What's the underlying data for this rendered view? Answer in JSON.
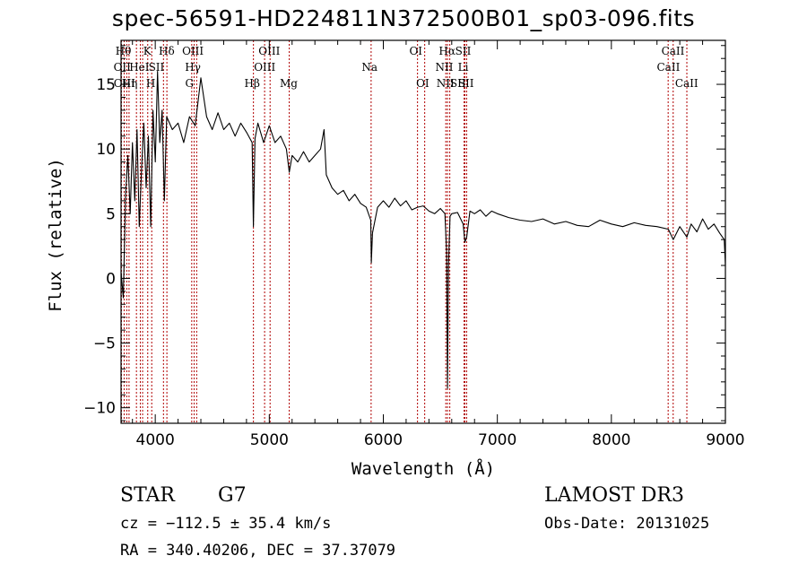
{
  "title": "spec-56591-HD224811N372500B01_sp03-096.fits",
  "info": {
    "class": "STAR",
    "subclass": "G7",
    "survey": "LAMOST DR3",
    "cz": "cz = −112.5 ± 35.4 km/s",
    "obs_date": "Obs-Date: 20131025",
    "radec": "RA = 340.40206, DEC =  37.37079"
  },
  "chart_data": {
    "type": "line",
    "title": "spec-56591-HD224811N372500B01_sp03-096.fits",
    "xlabel": "Wavelength (Å)",
    "ylabel": "Flux (relative)",
    "xlim": [
      3700,
      9000
    ],
    "ylim": [
      -11.2,
      18.4
    ],
    "xticks": [
      4000,
      5000,
      6000,
      7000,
      8000,
      9000
    ],
    "yticks": [
      -10,
      -5,
      0,
      5,
      10,
      15
    ],
    "ytick_labels": [
      "−10",
      "−5",
      "0",
      "5",
      "10",
      "15"
    ],
    "series": [
      {
        "name": "spectrum",
        "points": [
          [
            3700,
            0.5
          ],
          [
            3720,
            -1.5
          ],
          [
            3740,
            6.5
          ],
          [
            3760,
            9.5
          ],
          [
            3780,
            5.0
          ],
          [
            3800,
            10.5
          ],
          [
            3820,
            6.0
          ],
          [
            3840,
            11.5
          ],
          [
            3860,
            4.0
          ],
          [
            3880,
            8.5
          ],
          [
            3900,
            12.0
          ],
          [
            3920,
            7.0
          ],
          [
            3940,
            11.0
          ],
          [
            3960,
            4.0
          ],
          [
            3980,
            13.0
          ],
          [
            4000,
            9.0
          ],
          [
            4020,
            16.0
          ],
          [
            4040,
            10.5
          ],
          [
            4060,
            13.0
          ],
          [
            4080,
            6.0
          ],
          [
            4100,
            12.5
          ],
          [
            4150,
            11.5
          ],
          [
            4200,
            12.0
          ],
          [
            4250,
            10.5
          ],
          [
            4300,
            12.5
          ],
          [
            4350,
            11.8
          ],
          [
            4400,
            15.5
          ],
          [
            4450,
            12.5
          ],
          [
            4500,
            11.5
          ],
          [
            4550,
            12.8
          ],
          [
            4600,
            11.5
          ],
          [
            4650,
            12.0
          ],
          [
            4700,
            11.0
          ],
          [
            4750,
            12.0
          ],
          [
            4800,
            11.3
          ],
          [
            4850,
            10.5
          ],
          [
            4861,
            4.0
          ],
          [
            4875,
            10.8
          ],
          [
            4900,
            12.0
          ],
          [
            4950,
            10.5
          ],
          [
            5000,
            11.8
          ],
          [
            5050,
            10.5
          ],
          [
            5100,
            11.0
          ],
          [
            5150,
            10.0
          ],
          [
            5175,
            8.2
          ],
          [
            5200,
            9.5
          ],
          [
            5250,
            9.0
          ],
          [
            5300,
            9.8
          ],
          [
            5350,
            9.0
          ],
          [
            5400,
            9.5
          ],
          [
            5450,
            10.0
          ],
          [
            5480,
            11.5
          ],
          [
            5500,
            8.0
          ],
          [
            5550,
            7.0
          ],
          [
            5600,
            6.5
          ],
          [
            5650,
            6.8
          ],
          [
            5700,
            6.0
          ],
          [
            5750,
            6.5
          ],
          [
            5800,
            5.8
          ],
          [
            5850,
            5.5
          ],
          [
            5890,
            4.5
          ],
          [
            5895,
            1.2
          ],
          [
            5905,
            3.5
          ],
          [
            5950,
            5.5
          ],
          [
            6000,
            6.0
          ],
          [
            6050,
            5.5
          ],
          [
            6100,
            6.2
          ],
          [
            6150,
            5.6
          ],
          [
            6200,
            6.0
          ],
          [
            6250,
            5.3
          ],
          [
            6300,
            5.5
          ],
          [
            6350,
            5.6
          ],
          [
            6400,
            5.2
          ],
          [
            6450,
            5.0
          ],
          [
            6500,
            5.4
          ],
          [
            6540,
            5.0
          ],
          [
            6555,
            2.0
          ],
          [
            6563,
            -8.5
          ],
          [
            6572,
            1.0
          ],
          [
            6585,
            4.8
          ],
          [
            6600,
            5.0
          ],
          [
            6650,
            5.1
          ],
          [
            6700,
            4.2
          ],
          [
            6716,
            2.8
          ],
          [
            6731,
            3.2
          ],
          [
            6760,
            5.2
          ],
          [
            6800,
            5.0
          ],
          [
            6850,
            5.3
          ],
          [
            6900,
            4.8
          ],
          [
            6950,
            5.2
          ],
          [
            7000,
            5.0
          ],
          [
            7100,
            4.7
          ],
          [
            7200,
            4.5
          ],
          [
            7300,
            4.4
          ],
          [
            7400,
            4.6
          ],
          [
            7500,
            4.2
          ],
          [
            7600,
            4.4
          ],
          [
            7700,
            4.1
          ],
          [
            7800,
            4.0
          ],
          [
            7900,
            4.5
          ],
          [
            8000,
            4.2
          ],
          [
            8100,
            4.0
          ],
          [
            8200,
            4.3
          ],
          [
            8300,
            4.1
          ],
          [
            8400,
            4.0
          ],
          [
            8500,
            3.8
          ],
          [
            8542,
            3.0
          ],
          [
            8600,
            4.0
          ],
          [
            8662,
            3.2
          ],
          [
            8700,
            4.2
          ],
          [
            8750,
            3.6
          ],
          [
            8800,
            4.6
          ],
          [
            8850,
            3.8
          ],
          [
            8900,
            4.2
          ],
          [
            8950,
            3.5
          ],
          [
            8990,
            3.0
          ],
          [
            9000,
            1.0
          ]
        ]
      }
    ],
    "lines": [
      {
        "x": 3704,
        "labels": [
          "Hθ",
          "OII"
        ]
      },
      {
        "x": 3727,
        "labels": [
          "OII"
        ]
      },
      {
        "x": 3750,
        "labels": [
          "Hη"
        ]
      },
      {
        "x": 3770,
        "labels": [
          "Hη"
        ]
      },
      {
        "x": 3835,
        "labels": [
          "Hη"
        ]
      },
      {
        "x": 3869,
        "labels": [
          "NeIII"
        ]
      },
      {
        "x": 3889,
        "labels": [
          "HeI"
        ]
      },
      {
        "x": 3934,
        "labels": [
          "K"
        ]
      },
      {
        "x": 3969,
        "labels": [
          "H"
        ]
      },
      {
        "x": 4072,
        "labels": [
          "SII"
        ]
      },
      {
        "x": 4102,
        "labels": [
          "Hδ"
        ]
      },
      {
        "x": 4320,
        "labels": [
          "OIII",
          "G"
        ]
      },
      {
        "x": 4341,
        "labels": [
          "Hγ"
        ]
      },
      {
        "x": 4363,
        "labels": [
          "OIII"
        ]
      },
      {
        "x": 4861,
        "labels": [
          "Hβ"
        ]
      },
      {
        "x": 4959,
        "labels": [
          "OIII"
        ]
      },
      {
        "x": 5007,
        "labels": [
          "OIII"
        ]
      },
      {
        "x": 5175,
        "labels": [
          "Mg"
        ]
      },
      {
        "x": 5893,
        "labels": [
          "Na"
        ]
      },
      {
        "x": 6300,
        "labels": [
          "OI"
        ]
      },
      {
        "x": 6363,
        "labels": [
          "OI"
        ]
      },
      {
        "x": 6548,
        "labels": [
          "NII"
        ]
      },
      {
        "x": 6563,
        "labels": [
          "Hα"
        ]
      },
      {
        "x": 6583,
        "labels": [
          "NII"
        ]
      },
      {
        "x": 6708,
        "labels": [
          "Li"
        ]
      },
      {
        "x": 6716,
        "labels": [
          "SII"
        ]
      },
      {
        "x": 6731,
        "labels": [
          "SII"
        ]
      },
      {
        "x": 8498,
        "labels": [
          "CaII"
        ]
      },
      {
        "x": 8542,
        "labels": [
          "CaII"
        ]
      },
      {
        "x": 8662,
        "labels": [
          "CaII"
        ]
      }
    ],
    "line_labels": [
      {
        "text": "Hθ",
        "x": 3720,
        "row": 0
      },
      {
        "text": "Hη",
        "x": 3775,
        "row": 2
      },
      {
        "text": "OII",
        "x": 3710,
        "row": 1
      },
      {
        "text": "OIII",
        "x": 3730,
        "row": 2
      },
      {
        "text": "HeI",
        "x": 3860,
        "row": 1
      },
      {
        "text": "K",
        "x": 3930,
        "row": 0
      },
      {
        "text": "SII",
        "x": 4010,
        "row": 1
      },
      {
        "text": "H",
        "x": 3960,
        "row": 2
      },
      {
        "text": "Hδ",
        "x": 4100,
        "row": 0
      },
      {
        "text": "OIII",
        "x": 4330,
        "row": 0
      },
      {
        "text": "Hγ",
        "x": 4330,
        "row": 1
      },
      {
        "text": "G",
        "x": 4300,
        "row": 2
      },
      {
        "text": "Hβ",
        "x": 4850,
        "row": 2
      },
      {
        "text": "OIII",
        "x": 5000,
        "row": 0
      },
      {
        "text": "OIII",
        "x": 4960,
        "row": 1
      },
      {
        "text": "Mg",
        "x": 5170,
        "row": 2
      },
      {
        "text": "Na",
        "x": 5880,
        "row": 1
      },
      {
        "text": "OI",
        "x": 6285,
        "row": 0
      },
      {
        "text": "OI",
        "x": 6345,
        "row": 2
      },
      {
        "text": "Hα",
        "x": 6560,
        "row": 0
      },
      {
        "text": "SII",
        "x": 6700,
        "row": 0
      },
      {
        "text": "NII",
        "x": 6535,
        "row": 1
      },
      {
        "text": "Li",
        "x": 6700,
        "row": 1
      },
      {
        "text": "NII",
        "x": 6545,
        "row": 2
      },
      {
        "text": "SII",
        "x": 6655,
        "row": 2
      },
      {
        "text": "SII",
        "x": 6725,
        "row": 2
      },
      {
        "text": "CaII",
        "x": 8540,
        "row": 0
      },
      {
        "text": "CaII",
        "x": 8500,
        "row": 1
      },
      {
        "text": "CaII",
        "x": 8660,
        "row": 2
      }
    ]
  }
}
